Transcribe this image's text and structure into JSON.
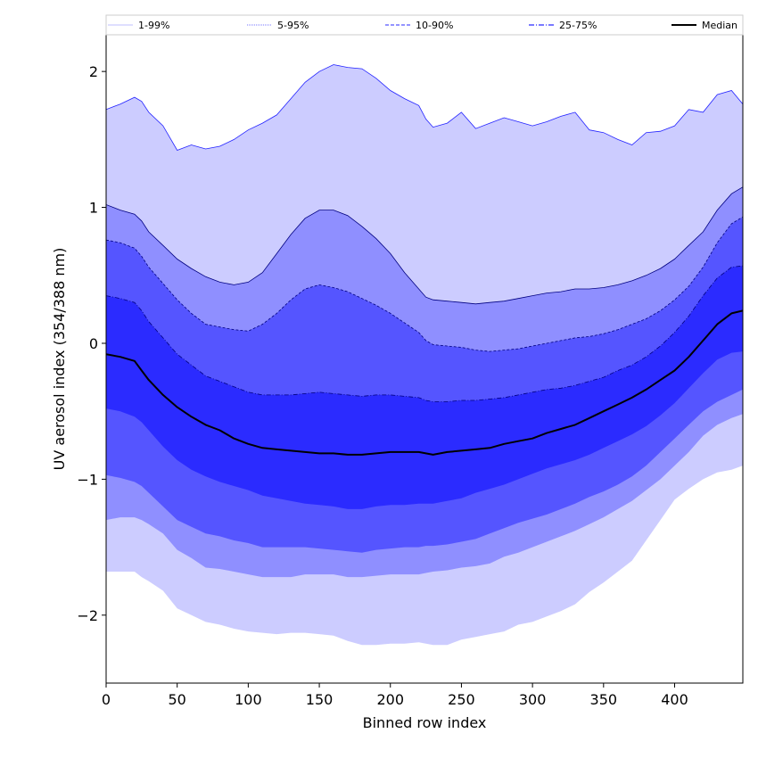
{
  "chart_data": {
    "type": "area",
    "xlabel": "Binned row index",
    "ylabel": "UV aerosol index (354/388 nm)",
    "xlim": [
      0,
      448
    ],
    "ylim": [
      -2.5,
      2.27
    ],
    "x_ticks": [
      0,
      50,
      100,
      150,
      200,
      250,
      300,
      350,
      400
    ],
    "x_tick_labels": [
      "0",
      "50",
      "100",
      "150",
      "200",
      "250",
      "300",
      "350",
      "400"
    ],
    "y_ticks": [
      -2,
      -1,
      0,
      1,
      2
    ],
    "y_tick_labels": [
      "−2",
      "−1",
      "0",
      "1",
      "2"
    ],
    "grid": false,
    "legend_position": "top (above plot, spanning width)",
    "x": [
      0,
      10,
      20,
      25,
      30,
      40,
      50,
      60,
      70,
      80,
      90,
      100,
      110,
      120,
      130,
      140,
      150,
      160,
      170,
      180,
      190,
      200,
      210,
      220,
      225,
      230,
      240,
      250,
      260,
      270,
      280,
      290,
      300,
      310,
      320,
      330,
      340,
      350,
      360,
      370,
      380,
      390,
      400,
      410,
      420,
      430,
      440,
      448
    ],
    "bands": [
      {
        "name": "1-99%",
        "color": "#ccccff",
        "line_color": "#2222ff",
        "line_style": "solid",
        "upper": [
          1.72,
          1.76,
          1.81,
          1.78,
          1.7,
          1.6,
          1.42,
          1.46,
          1.43,
          1.45,
          1.5,
          1.57,
          1.62,
          1.68,
          1.8,
          1.92,
          2.0,
          2.05,
          2.03,
          2.02,
          1.95,
          1.86,
          1.8,
          1.75,
          1.65,
          1.59,
          1.62,
          1.7,
          1.58,
          1.62,
          1.66,
          1.63,
          1.6,
          1.63,
          1.67,
          1.7,
          1.57,
          1.55,
          1.5,
          1.46,
          1.55,
          1.56,
          1.6,
          1.72,
          1.7,
          1.83,
          1.86,
          1.76
        ],
        "lower": [
          -1.68,
          -1.68,
          -1.68,
          -1.72,
          -1.75,
          -1.82,
          -1.95,
          -2.0,
          -2.05,
          -2.07,
          -2.1,
          -2.12,
          -2.13,
          -2.14,
          -2.13,
          -2.13,
          -2.14,
          -2.15,
          -2.19,
          -2.22,
          -2.22,
          -2.21,
          -2.21,
          -2.2,
          -2.21,
          -2.22,
          -2.22,
          -2.18,
          -2.16,
          -2.14,
          -2.12,
          -2.07,
          -2.05,
          -2.01,
          -1.97,
          -1.92,
          -1.83,
          -1.76,
          -1.68,
          -1.6,
          -1.45,
          -1.3,
          -1.15,
          -1.07,
          -1.0,
          -0.95,
          -0.93,
          -0.9
        ]
      },
      {
        "name": "5-95%",
        "color": "#8f8fff",
        "line_color": "#000080",
        "line_style": "solid",
        "upper": [
          1.02,
          0.98,
          0.95,
          0.9,
          0.82,
          0.72,
          0.62,
          0.55,
          0.49,
          0.45,
          0.43,
          0.45,
          0.52,
          0.66,
          0.8,
          0.92,
          0.98,
          0.98,
          0.94,
          0.86,
          0.77,
          0.66,
          0.52,
          0.4,
          0.34,
          0.32,
          0.31,
          0.3,
          0.29,
          0.3,
          0.31,
          0.33,
          0.35,
          0.37,
          0.38,
          0.4,
          0.4,
          0.41,
          0.43,
          0.46,
          0.5,
          0.55,
          0.62,
          0.72,
          0.82,
          0.98,
          1.1,
          1.15
        ],
        "lower": [
          -1.3,
          -1.28,
          -1.28,
          -1.3,
          -1.33,
          -1.4,
          -1.52,
          -1.58,
          -1.65,
          -1.66,
          -1.68,
          -1.7,
          -1.72,
          -1.72,
          -1.72,
          -1.7,
          -1.7,
          -1.7,
          -1.72,
          -1.72,
          -1.71,
          -1.7,
          -1.7,
          -1.7,
          -1.69,
          -1.68,
          -1.67,
          -1.65,
          -1.64,
          -1.62,
          -1.57,
          -1.54,
          -1.5,
          -1.46,
          -1.42,
          -1.38,
          -1.33,
          -1.28,
          -1.22,
          -1.16,
          -1.08,
          -1.0,
          -0.9,
          -0.8,
          -0.68,
          -0.6,
          -0.55,
          -0.52
        ]
      },
      {
        "name": "10-90%",
        "color": "#5555ff",
        "line_color": "#000080",
        "line_style": "dashed",
        "upper": [
          0.76,
          0.74,
          0.7,
          0.64,
          0.56,
          0.44,
          0.32,
          0.22,
          0.14,
          0.12,
          0.1,
          0.09,
          0.14,
          0.22,
          0.32,
          0.4,
          0.43,
          0.41,
          0.38,
          0.33,
          0.28,
          0.22,
          0.15,
          0.08,
          0.02,
          -0.01,
          -0.02,
          -0.03,
          -0.05,
          -0.06,
          -0.05,
          -0.04,
          -0.02,
          0.0,
          0.02,
          0.04,
          0.05,
          0.07,
          0.1,
          0.14,
          0.18,
          0.24,
          0.32,
          0.42,
          0.56,
          0.74,
          0.88,
          0.93
        ],
        "lower": [
          -0.97,
          -0.99,
          -1.02,
          -1.05,
          -1.1,
          -1.2,
          -1.3,
          -1.35,
          -1.4,
          -1.42,
          -1.45,
          -1.47,
          -1.5,
          -1.5,
          -1.5,
          -1.5,
          -1.51,
          -1.52,
          -1.53,
          -1.54,
          -1.52,
          -1.51,
          -1.5,
          -1.5,
          -1.49,
          -1.49,
          -1.48,
          -1.46,
          -1.44,
          -1.4,
          -1.36,
          -1.32,
          -1.29,
          -1.26,
          -1.22,
          -1.18,
          -1.13,
          -1.09,
          -1.04,
          -0.98,
          -0.9,
          -0.8,
          -0.7,
          -0.6,
          -0.5,
          -0.43,
          -0.38,
          -0.34
        ]
      },
      {
        "name": "25-75%",
        "color": "#2b2bff",
        "line_color": "#000080",
        "line_style": "dashdot",
        "upper": [
          0.35,
          0.33,
          0.3,
          0.24,
          0.16,
          0.04,
          -0.08,
          -0.16,
          -0.24,
          -0.28,
          -0.32,
          -0.36,
          -0.38,
          -0.38,
          -0.38,
          -0.37,
          -0.36,
          -0.37,
          -0.38,
          -0.39,
          -0.38,
          -0.38,
          -0.39,
          -0.4,
          -0.42,
          -0.43,
          -0.43,
          -0.42,
          -0.42,
          -0.41,
          -0.4,
          -0.38,
          -0.36,
          -0.34,
          -0.33,
          -0.31,
          -0.28,
          -0.25,
          -0.2,
          -0.16,
          -0.1,
          -0.02,
          0.08,
          0.2,
          0.35,
          0.48,
          0.56,
          0.57
        ],
        "lower": [
          -0.48,
          -0.5,
          -0.54,
          -0.58,
          -0.64,
          -0.76,
          -0.86,
          -0.93,
          -0.98,
          -1.02,
          -1.05,
          -1.08,
          -1.12,
          -1.14,
          -1.16,
          -1.18,
          -1.19,
          -1.2,
          -1.22,
          -1.22,
          -1.2,
          -1.19,
          -1.19,
          -1.18,
          -1.18,
          -1.18,
          -1.16,
          -1.14,
          -1.1,
          -1.07,
          -1.04,
          -1.0,
          -0.96,
          -0.92,
          -0.89,
          -0.86,
          -0.82,
          -0.77,
          -0.72,
          -0.67,
          -0.61,
          -0.53,
          -0.44,
          -0.33,
          -0.22,
          -0.12,
          -0.07,
          -0.06
        ]
      }
    ],
    "series": [
      {
        "name": "Median",
        "color": "#000000",
        "style": "solid",
        "values": [
          -0.08,
          -0.1,
          -0.13,
          -0.2,
          -0.27,
          -0.38,
          -0.47,
          -0.54,
          -0.6,
          -0.64,
          -0.7,
          -0.74,
          -0.77,
          -0.78,
          -0.79,
          -0.8,
          -0.81,
          -0.81,
          -0.82,
          -0.82,
          -0.81,
          -0.8,
          -0.8,
          -0.8,
          -0.81,
          -0.82,
          -0.8,
          -0.79,
          -0.78,
          -0.77,
          -0.74,
          -0.72,
          -0.7,
          -0.66,
          -0.63,
          -0.6,
          -0.55,
          -0.5,
          -0.45,
          -0.4,
          -0.34,
          -0.27,
          -0.2,
          -0.1,
          0.02,
          0.14,
          0.22,
          0.24
        ]
      }
    ],
    "legend": [
      {
        "label": "1-99%",
        "color": "#ccccff",
        "dash": ""
      },
      {
        "label": "5-95%",
        "color": "#8f8fff",
        "dash": "1,1"
      },
      {
        "label": "10-90%",
        "color": "#5555ff",
        "dash": "4,2"
      },
      {
        "label": "25-75%",
        "color": "#2b2bff",
        "dash": "6,2,1,2"
      },
      {
        "label": "Median",
        "color": "#000000",
        "dash": ""
      }
    ]
  }
}
